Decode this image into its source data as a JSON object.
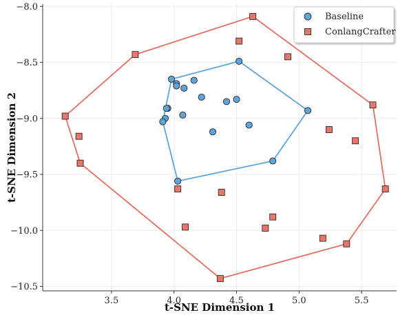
{
  "chart_data": {
    "type": "scatter",
    "title": "",
    "xlabel": "t-SNE Dimension 1",
    "ylabel": "t-SNE Dimension 2",
    "xlim": [
      2.95,
      5.78
    ],
    "ylim": [
      -10.54,
      -7.98
    ],
    "xticks": [
      3.5,
      4.0,
      4.5,
      5.0,
      5.5
    ],
    "xtick_labels": [
      "3.5",
      "4.0",
      "4.5",
      "5.0",
      "5.5"
    ],
    "yticks": [
      -8.0,
      -8.5,
      -9.0,
      -9.5,
      -10.0,
      -10.5
    ],
    "ytick_labels": [
      "−8.0",
      "−8.5",
      "−9.0",
      "−9.5",
      "−10.0",
      "−10.5"
    ],
    "grid": true,
    "legend_position": "top-right",
    "series": [
      {
        "name": "Baseline",
        "marker": "circle",
        "color": "#5DA5DA",
        "hull_color": "#5DA5DA",
        "points": [
          [
            3.98,
            -8.65
          ],
          [
            4.02,
            -8.69
          ],
          [
            4.02,
            -8.71
          ],
          [
            4.08,
            -8.73
          ],
          [
            4.16,
            -8.66
          ],
          [
            3.95,
            -8.91
          ],
          [
            3.94,
            -8.91
          ],
          [
            3.93,
            -9.0
          ],
          [
            3.91,
            -9.03
          ],
          [
            4.07,
            -8.97
          ],
          [
            4.22,
            -8.81
          ],
          [
            4.31,
            -9.12
          ],
          [
            4.42,
            -8.85
          ],
          [
            4.5,
            -8.83
          ],
          [
            4.52,
            -8.49
          ],
          [
            4.6,
            -9.06
          ],
          [
            5.07,
            -8.93
          ],
          [
            4.79,
            -9.38
          ],
          [
            4.03,
            -9.56
          ]
        ],
        "hull": [
          [
            3.98,
            -8.65
          ],
          [
            4.52,
            -8.49
          ],
          [
            5.07,
            -8.93
          ],
          [
            4.79,
            -9.38
          ],
          [
            4.03,
            -9.56
          ],
          [
            3.91,
            -9.03
          ]
        ]
      },
      {
        "name": "ConlangCrafter",
        "marker": "square",
        "color": "#E8776A",
        "hull_color": "#E07060",
        "points": [
          [
            4.63,
            -8.09
          ],
          [
            4.52,
            -8.31
          ],
          [
            3.69,
            -8.43
          ],
          [
            4.91,
            -8.45
          ],
          [
            3.13,
            -8.98
          ],
          [
            3.24,
            -9.16
          ],
          [
            3.25,
            -9.4
          ],
          [
            5.59,
            -8.88
          ],
          [
            5.24,
            -9.1
          ],
          [
            5.45,
            -9.2
          ],
          [
            4.03,
            -9.63
          ],
          [
            4.38,
            -9.66
          ],
          [
            5.69,
            -9.63
          ],
          [
            4.09,
            -9.97
          ],
          [
            4.79,
            -9.88
          ],
          [
            4.73,
            -9.98
          ],
          [
            5.19,
            -10.07
          ],
          [
            5.38,
            -10.12
          ],
          [
            4.37,
            -10.43
          ]
        ],
        "hull": [
          [
            4.63,
            -8.09
          ],
          [
            5.59,
            -8.88
          ],
          [
            5.69,
            -9.63
          ],
          [
            5.38,
            -10.12
          ],
          [
            4.37,
            -10.43
          ],
          [
            3.25,
            -9.4
          ],
          [
            3.13,
            -8.98
          ],
          [
            3.69,
            -8.43
          ]
        ]
      }
    ]
  }
}
